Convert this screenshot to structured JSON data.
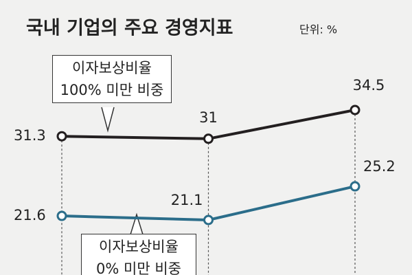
{
  "chart_data": {
    "type": "line",
    "title": "국내 기업의 주요 경영지표",
    "subtitle": "단위: %",
    "categories": [
      null,
      null,
      null
    ],
    "series": [
      {
        "name": "이자보상비율\n100% 미만 비중",
        "color": "#231f20",
        "values": [
          31.3,
          31.0,
          34.5
        ]
      },
      {
        "name": "이자보상비율\n0% 미만 비중",
        "color": "#2b6d8a",
        "values": [
          21.6,
          21.1,
          25.2
        ]
      }
    ]
  }
}
